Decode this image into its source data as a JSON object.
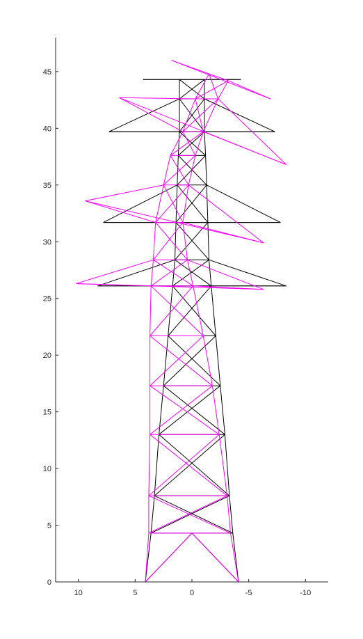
{
  "chart_data": {
    "type": "line",
    "title": "",
    "xlabel": "",
    "ylabel": "",
    "xlim": [
      -12,
      12
    ],
    "ylim": [
      0,
      48
    ],
    "x_reversed": true,
    "grid": false,
    "legend": "none",
    "x_ticks": [
      10,
      5,
      0,
      -5,
      -10
    ],
    "x_tick_labels": [
      "10",
      "5",
      "0",
      "-5",
      "-10"
    ],
    "y_ticks": [
      0,
      5,
      10,
      15,
      20,
      25,
      30,
      35,
      40,
      45
    ],
    "y_tick_labels": [
      "0",
      "5",
      "10",
      "15",
      "20",
      "25",
      "30",
      "35",
      "40",
      "45"
    ],
    "series": [
      {
        "color": "#000000",
        "style": "undeformed",
        "nodes": {
          "B1": [
            4.1,
            0
          ],
          "B2": [
            -4.1,
            0
          ],
          "P": [
            0,
            4.3
          ],
          "L1": [
            3.6,
            4.3
          ],
          "R1": [
            -3.6,
            4.3
          ],
          "L2": [
            3.3,
            7.6
          ],
          "R2": [
            -3.3,
            7.6
          ],
          "L3": [
            2.9,
            13.0
          ],
          "R3": [
            -2.9,
            13.0
          ],
          "L4": [
            2.5,
            17.3
          ],
          "R4": [
            -2.5,
            17.3
          ],
          "L5": [
            2.1,
            21.7
          ],
          "R5": [
            -2.1,
            21.7
          ],
          "L6": [
            1.7,
            26.1
          ],
          "R6": [
            -1.7,
            26.1
          ],
          "L7": [
            1.5,
            28.4
          ],
          "R7": [
            -1.5,
            28.4
          ],
          "L8": [
            1.4,
            31.7
          ],
          "R8": [
            -1.4,
            31.7
          ],
          "L9": [
            1.3,
            35.0
          ],
          "R9": [
            -1.3,
            35.0
          ],
          "L10": [
            1.2,
            37.6
          ],
          "R10": [
            -1.2,
            37.6
          ],
          "L11": [
            1.1,
            39.7
          ],
          "R11": [
            -1.1,
            39.7
          ],
          "L12": [
            1.1,
            42.6
          ],
          "R12": [
            -1.1,
            42.6
          ],
          "T1": [
            1.1,
            44.3
          ],
          "T2": [
            -1.1,
            44.3
          ],
          "C1L": [
            8.3,
            26.1
          ],
          "C1R": [
            -8.3,
            26.1
          ],
          "C2L": [
            7.8,
            31.7
          ],
          "C2R": [
            -7.8,
            31.7
          ],
          "C3L": [
            7.3,
            39.7
          ],
          "C3R": [
            -7.3,
            39.7
          ],
          "E1L": [
            4.3,
            44.3
          ],
          "E1R": [
            -4.3,
            44.3
          ]
        },
        "members": [
          [
            "B1",
            "L1"
          ],
          [
            "L1",
            "L2"
          ],
          [
            "L2",
            "L3"
          ],
          [
            "L3",
            "L4"
          ],
          [
            "L4",
            "L5"
          ],
          [
            "L5",
            "L6"
          ],
          [
            "L6",
            "L7"
          ],
          [
            "L7",
            "L8"
          ],
          [
            "L8",
            "L9"
          ],
          [
            "L9",
            "L10"
          ],
          [
            "L10",
            "L11"
          ],
          [
            "L11",
            "L12"
          ],
          [
            "L12",
            "T1"
          ],
          [
            "B2",
            "R1"
          ],
          [
            "R1",
            "R2"
          ],
          [
            "R2",
            "R3"
          ],
          [
            "R3",
            "R4"
          ],
          [
            "R4",
            "R5"
          ],
          [
            "R5",
            "R6"
          ],
          [
            "R6",
            "R7"
          ],
          [
            "R7",
            "R8"
          ],
          [
            "R8",
            "R9"
          ],
          [
            "R9",
            "R10"
          ],
          [
            "R10",
            "R11"
          ],
          [
            "R11",
            "R12"
          ],
          [
            "R12",
            "T2"
          ],
          [
            "L1",
            "R1"
          ],
          [
            "L2",
            "R2"
          ],
          [
            "L3",
            "R3"
          ],
          [
            "L4",
            "R4"
          ],
          [
            "L5",
            "R5"
          ],
          [
            "L6",
            "R6"
          ],
          [
            "L7",
            "R7"
          ],
          [
            "L8",
            "R8"
          ],
          [
            "L9",
            "R9"
          ],
          [
            "L10",
            "R10"
          ],
          [
            "L11",
            "R11"
          ],
          [
            "L12",
            "R12"
          ],
          [
            "T1",
            "T2"
          ],
          [
            "B1",
            "P"
          ],
          [
            "B2",
            "P"
          ],
          [
            "L1",
            "R2"
          ],
          [
            "R1",
            "L2"
          ],
          [
            "L2",
            "R3"
          ],
          [
            "R2",
            "L3"
          ],
          [
            "L3",
            "R4"
          ],
          [
            "R3",
            "L4"
          ],
          [
            "L4",
            "R5"
          ],
          [
            "R4",
            "L5"
          ],
          [
            "L5",
            "R6"
          ],
          [
            "R5",
            "L6"
          ],
          [
            "L6",
            "R7"
          ],
          [
            "R6",
            "L7"
          ],
          [
            "L7",
            "R8"
          ],
          [
            "R7",
            "L8"
          ],
          [
            "L8",
            "R9"
          ],
          [
            "R8",
            "L9"
          ],
          [
            "L9",
            "R10"
          ],
          [
            "R9",
            "L10"
          ],
          [
            "L10",
            "R11"
          ],
          [
            "R10",
            "L11"
          ],
          [
            "L11",
            "R12"
          ],
          [
            "R11",
            "L12"
          ],
          [
            "L12",
            "T2"
          ],
          [
            "R12",
            "T1"
          ],
          [
            "C1L",
            "L6"
          ],
          [
            "C1L",
            "L7"
          ],
          [
            "C1R",
            "R6"
          ],
          [
            "C1R",
            "R7"
          ],
          [
            "C1L",
            "C1R"
          ],
          [
            "C2L",
            "L8"
          ],
          [
            "C2L",
            "L9"
          ],
          [
            "C2R",
            "R8"
          ],
          [
            "C2R",
            "R9"
          ],
          [
            "C2L",
            "C2R"
          ],
          [
            "C3L",
            "L11"
          ],
          [
            "C3L",
            "L12"
          ],
          [
            "C3R",
            "R11"
          ],
          [
            "C3R",
            "R12"
          ],
          [
            "C3L",
            "C3R"
          ],
          [
            "E1L",
            "E1R"
          ],
          [
            "E1L",
            "T1"
          ],
          [
            "E1R",
            "T2"
          ]
        ]
      },
      {
        "color": "#ff00ff",
        "style": "deformed",
        "nodes": {
          "B1": [
            4.1,
            0
          ],
          "B2": [
            -4.1,
            0
          ],
          "P": [
            0,
            4.3
          ],
          "L1": [
            3.8,
            4.3
          ],
          "R1": [
            -3.4,
            4.3
          ],
          "L2": [
            3.8,
            7.6
          ],
          "R2": [
            -3.1,
            7.6
          ],
          "L3": [
            3.7,
            13.0
          ],
          "R3": [
            -2.4,
            13.0
          ],
          "L4": [
            3.7,
            17.3
          ],
          "R4": [
            -1.8,
            17.3
          ],
          "L5": [
            3.7,
            21.7
          ],
          "R5": [
            -1.0,
            21.7
          ],
          "L6": [
            3.6,
            26.1
          ],
          "R6": [
            -0.1,
            26.1
          ],
          "L7": [
            3.4,
            28.4
          ],
          "R7": [
            0.4,
            28.4
          ],
          "L8": [
            3.2,
            31.7
          ],
          "R8": [
            0.8,
            31.7
          ],
          "L9": [
            2.5,
            35.0
          ],
          "R9": [
            0.3,
            35.0
          ],
          "L10": [
            1.9,
            37.6
          ],
          "R10": [
            -0.3,
            37.6
          ],
          "L11": [
            0.8,
            39.7
          ],
          "R11": [
            -1.0,
            39.7
          ],
          "L12": [
            -0.3,
            42.6
          ],
          "R12": [
            -2.3,
            42.6
          ],
          "T1": [
            -1.5,
            44.8
          ],
          "T2": [
            -3.2,
            44.2
          ],
          "C1L": [
            10.2,
            26.3
          ],
          "C1R": [
            -6.3,
            25.8
          ],
          "C2L": [
            9.4,
            33.6
          ],
          "C2R": [
            -6.3,
            29.9
          ],
          "C3L": [
            6.4,
            42.7
          ],
          "C3R": [
            -8.3,
            36.8
          ],
          "E1L": [
            1.8,
            46.0
          ],
          "E1R": [
            -6.9,
            42.6
          ]
        },
        "members": [
          [
            "B1",
            "L1"
          ],
          [
            "L1",
            "L2"
          ],
          [
            "L2",
            "L3"
          ],
          [
            "L3",
            "L4"
          ],
          [
            "L4",
            "L5"
          ],
          [
            "L5",
            "L6"
          ],
          [
            "L6",
            "L7"
          ],
          [
            "L7",
            "L8"
          ],
          [
            "L8",
            "L9"
          ],
          [
            "L9",
            "L10"
          ],
          [
            "L10",
            "L11"
          ],
          [
            "L11",
            "L12"
          ],
          [
            "L12",
            "T1"
          ],
          [
            "B2",
            "R1"
          ],
          [
            "R1",
            "R2"
          ],
          [
            "R2",
            "R3"
          ],
          [
            "R3",
            "R4"
          ],
          [
            "R4",
            "R5"
          ],
          [
            "R5",
            "R6"
          ],
          [
            "R6",
            "R7"
          ],
          [
            "R7",
            "R8"
          ],
          [
            "R8",
            "R9"
          ],
          [
            "R9",
            "R10"
          ],
          [
            "R10",
            "R11"
          ],
          [
            "R11",
            "R12"
          ],
          [
            "R12",
            "T2"
          ],
          [
            "L1",
            "R1"
          ],
          [
            "L2",
            "R2"
          ],
          [
            "L3",
            "R3"
          ],
          [
            "L4",
            "R4"
          ],
          [
            "L5",
            "R5"
          ],
          [
            "L6",
            "R6"
          ],
          [
            "L7",
            "R7"
          ],
          [
            "L8",
            "R8"
          ],
          [
            "L9",
            "R9"
          ],
          [
            "L10",
            "R10"
          ],
          [
            "L11",
            "R11"
          ],
          [
            "L12",
            "R12"
          ],
          [
            "T1",
            "T2"
          ],
          [
            "B1",
            "P"
          ],
          [
            "B2",
            "P"
          ],
          [
            "L1",
            "R2"
          ],
          [
            "R1",
            "L2"
          ],
          [
            "L2",
            "R3"
          ],
          [
            "R2",
            "L3"
          ],
          [
            "L3",
            "R4"
          ],
          [
            "R3",
            "L4"
          ],
          [
            "L4",
            "R5"
          ],
          [
            "R4",
            "L5"
          ],
          [
            "L5",
            "R6"
          ],
          [
            "R5",
            "L6"
          ],
          [
            "L6",
            "R7"
          ],
          [
            "R6",
            "L7"
          ],
          [
            "L7",
            "R8"
          ],
          [
            "R7",
            "L8"
          ],
          [
            "L8",
            "R9"
          ],
          [
            "R8",
            "L9"
          ],
          [
            "L9",
            "R10"
          ],
          [
            "R9",
            "L10"
          ],
          [
            "L10",
            "R11"
          ],
          [
            "R10",
            "L11"
          ],
          [
            "L11",
            "R12"
          ],
          [
            "R11",
            "L12"
          ],
          [
            "L12",
            "T2"
          ],
          [
            "R12",
            "T1"
          ],
          [
            "C1L",
            "L6"
          ],
          [
            "C1L",
            "L7"
          ],
          [
            "C1R",
            "R6"
          ],
          [
            "C1R",
            "R7"
          ],
          [
            "C1L",
            "C1R"
          ],
          [
            "C2L",
            "L8"
          ],
          [
            "C2L",
            "L9"
          ],
          [
            "C2R",
            "R8"
          ],
          [
            "C2R",
            "R9"
          ],
          [
            "C2L",
            "C2R"
          ],
          [
            "C3L",
            "L11"
          ],
          [
            "C3L",
            "L12"
          ],
          [
            "C3R",
            "R11"
          ],
          [
            "C3R",
            "R12"
          ],
          [
            "C3L",
            "C3R"
          ],
          [
            "E1L",
            "E1R"
          ],
          [
            "E1L",
            "T1"
          ],
          [
            "E1R",
            "T2"
          ]
        ]
      }
    ]
  }
}
